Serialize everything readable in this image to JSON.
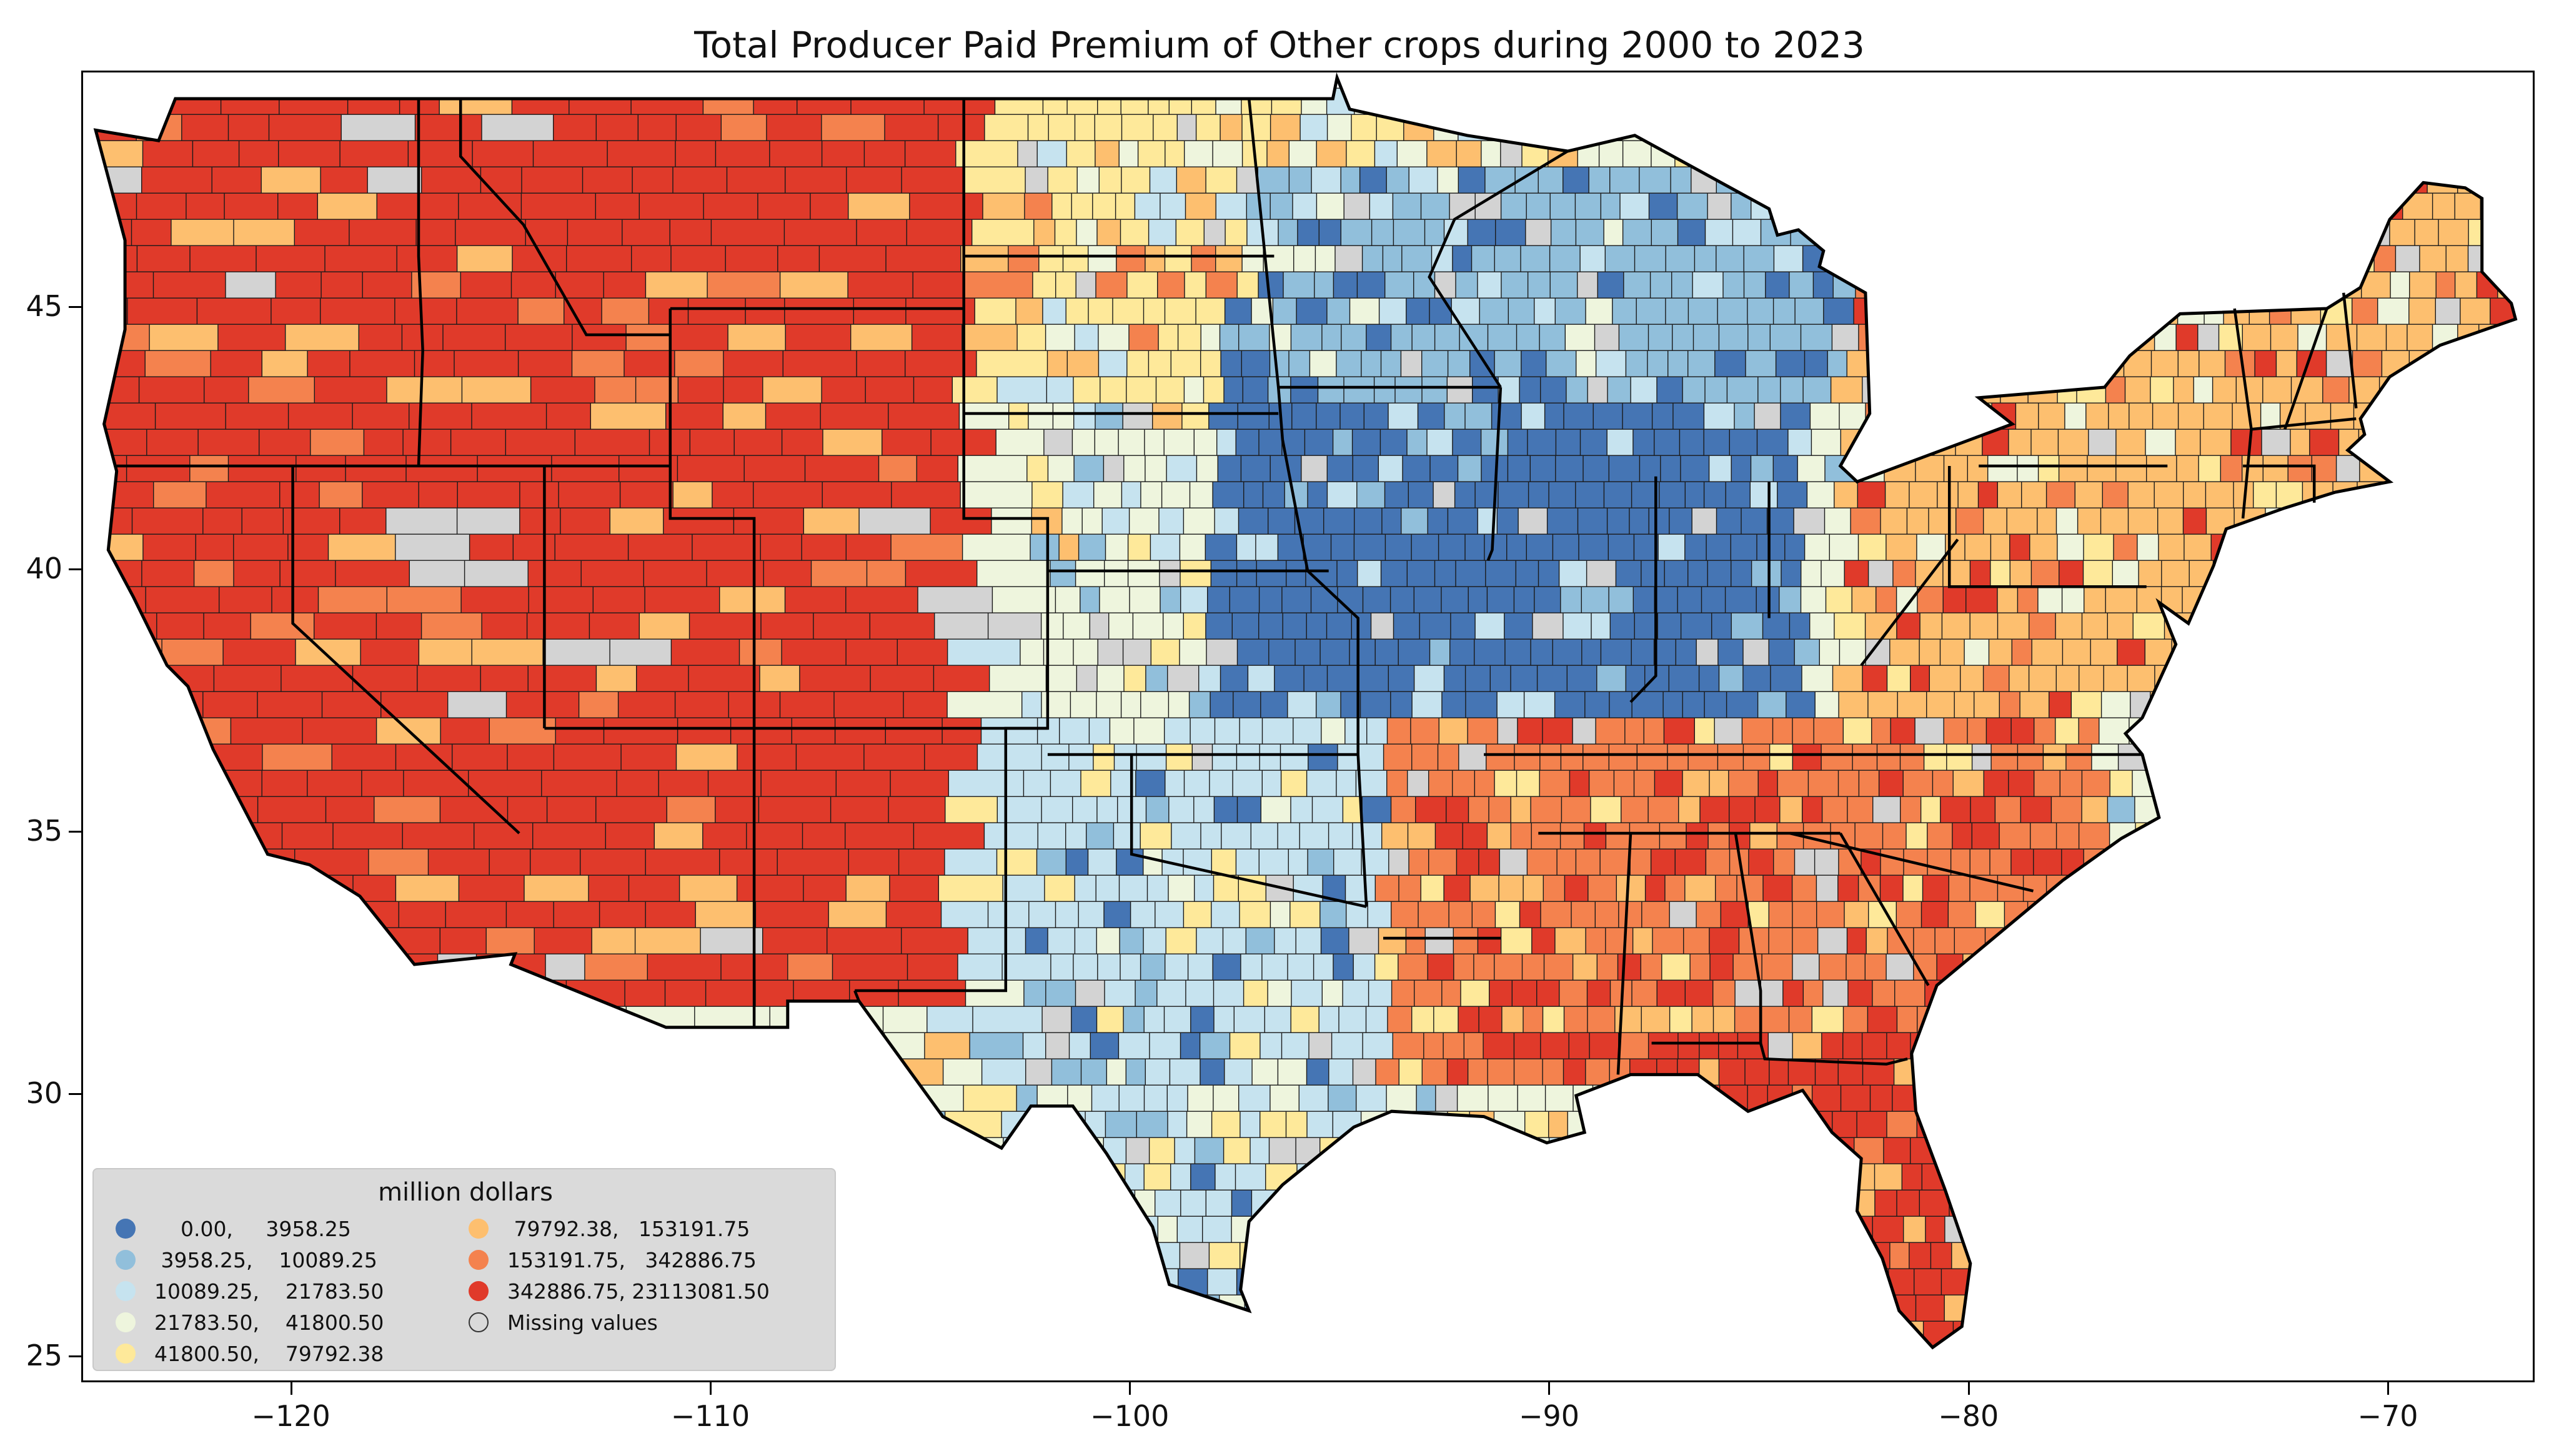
{
  "title": "Total Producer Paid Premium of Other crops during 2000 to 2023",
  "axes": {
    "x_ticks": [
      "−120",
      "−110",
      "−100",
      "−90",
      "−80",
      "−70"
    ],
    "y_ticks": [
      "45",
      "40",
      "35",
      "30",
      "25"
    ]
  },
  "legend": {
    "title": "million dollars",
    "items": [
      {
        "label": "    0.00,     3958.25",
        "color": "#4575b4"
      },
      {
        "label": " 3958.25,    10089.25",
        "color": "#91bfdb"
      },
      {
        "label": "10089.25,    21783.50",
        "color": "#c6e3ef"
      },
      {
        "label": "21783.50,    41800.50",
        "color": "#eef5dd"
      },
      {
        "label": "41800.50,    79792.38",
        "color": "#fee99a"
      },
      {
        "label": " 79792.38,   153191.75",
        "color": "#fdbf6f"
      },
      {
        "label": "153191.75,   342886.75",
        "color": "#f4824e"
      },
      {
        "label": "342886.75, 23113081.50",
        "color": "#e03a2a"
      },
      {
        "label": "Missing values",
        "color": "#d3d3d3"
      }
    ]
  },
  "map_data": {
    "type": "choropleth",
    "region": "Contiguous United States (counties)",
    "lon_range": [
      -125,
      -66.5
    ],
    "lat_range": [
      24.5,
      49.5
    ],
    "regional_pattern": [
      {
        "region": "west",
        "lon": [
          -124.5,
          -104
        ],
        "lat": [
          31.5,
          49
        ],
        "dominant_class": 7
      },
      {
        "region": "northern-plains",
        "lon": [
          -104,
          -97
        ],
        "lat": [
          43,
          49
        ],
        "dominant_class": 4
      },
      {
        "region": "corn-belt",
        "lon": [
          -98,
          -84
        ],
        "lat": [
          37,
          45
        ],
        "dominant_class": 0
      },
      {
        "region": "upper-midwest",
        "lon": [
          -97,
          -83
        ],
        "lat": [
          43,
          47.5
        ],
        "dominant_class": 1
      },
      {
        "region": "southern-plains",
        "lon": [
          -104,
          -94
        ],
        "lat": [
          26,
          37
        ],
        "dominant_class": 2
      },
      {
        "region": "southeast",
        "lon": [
          -94,
          -77
        ],
        "lat": [
          30,
          37
        ],
        "dominant_class": 6
      },
      {
        "region": "florida",
        "lon": [
          -87.5,
          -80
        ],
        "lat": [
          25,
          31
        ],
        "dominant_class": 7
      },
      {
        "region": "northeast",
        "lon": [
          -83,
          -67
        ],
        "lat": [
          37,
          47.5
        ],
        "dominant_class": 5
      }
    ]
  }
}
